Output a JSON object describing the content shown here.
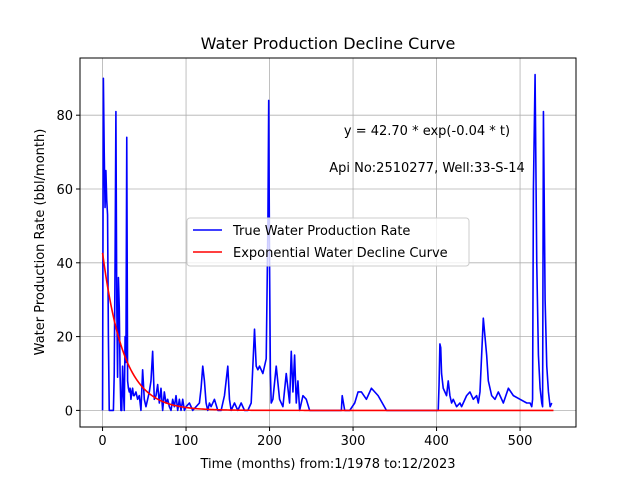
{
  "chart_data": {
    "type": "line",
    "title": "Water Production Decline Curve",
    "xlabel": "Time (months) from:1/1978 to:12/2023",
    "ylabel": "Water Production Rate (bbl/month)",
    "xlim": [
      -27,
      567
    ],
    "ylim": [
      -4.5,
      95.5
    ],
    "xticks": [
      0,
      100,
      200,
      300,
      400,
      500
    ],
    "yticks": [
      0,
      20,
      40,
      60,
      80
    ],
    "grid": true,
    "legend_position": "center-left",
    "annotations": [
      {
        "text": "y = 42.70 * exp(-0.04 * t)",
        "x": 350,
        "y": 76
      },
      {
        "text": "Api No:2510277, Well:33-S-14",
        "x": 349,
        "y": 66
      }
    ],
    "series": [
      {
        "name": "True Water Production Rate",
        "color": "#0000ff",
        "kind": "line",
        "x": [
          0,
          1,
          2,
          3,
          4,
          5,
          6,
          7,
          8,
          9,
          10,
          11,
          12,
          13,
          14,
          15,
          16,
          17,
          18,
          19,
          20,
          21,
          22,
          23,
          24,
          25,
          26,
          27,
          28,
          29,
          30,
          31,
          32,
          33,
          34,
          35,
          36,
          37,
          38,
          40,
          42,
          44,
          46,
          48,
          50,
          52,
          54,
          56,
          58,
          60,
          62,
          64,
          66,
          68,
          70,
          72,
          74,
          76,
          78,
          80,
          82,
          84,
          86,
          88,
          90,
          92,
          94,
          96,
          98,
          100,
          104,
          108,
          112,
          116,
          118,
          120,
          122,
          124,
          126,
          128,
          130,
          134,
          138,
          142,
          146,
          148,
          150,
          152,
          154,
          158,
          162,
          166,
          170,
          174,
          178,
          180,
          182,
          184,
          186,
          188,
          192,
          196,
          198,
          199,
          200,
          201,
          202,
          204,
          208,
          212,
          216,
          220,
          224,
          226,
          228,
          230,
          232,
          234,
          236,
          240,
          244,
          248,
          260,
          280,
          286,
          287,
          290,
          296,
          302,
          306,
          310,
          316,
          322,
          330,
          340,
          350,
          360,
          370,
          380,
          390,
          396,
          400,
          402,
          403,
          404,
          405,
          406,
          408,
          412,
          414,
          416,
          418,
          420,
          424,
          428,
          430,
          432,
          436,
          440,
          444,
          448,
          450,
          452,
          454,
          456,
          458,
          460,
          462,
          466,
          470,
          474,
          480,
          486,
          492,
          500,
          508,
          512,
          514,
          515,
          516,
          518,
          520,
          522,
          524,
          526,
          527,
          528,
          530,
          532,
          534,
          536,
          538
        ],
        "y": [
          0,
          90,
          70,
          55,
          65,
          57,
          53,
          20,
          0,
          0,
          0,
          0,
          0,
          0,
          10,
          40,
          81,
          30,
          9,
          36,
          28,
          10,
          0,
          0,
          12,
          5,
          0,
          20,
          13,
          74,
          8,
          6,
          5,
          6,
          3,
          5,
          6,
          4,
          4,
          5,
          3,
          4,
          0,
          11,
          3,
          1,
          3,
          5,
          8,
          16,
          3,
          4,
          7,
          2,
          6,
          0,
          5,
          2,
          3,
          1,
          0,
          3,
          1,
          4,
          0,
          3,
          0,
          3,
          0,
          1,
          2,
          0,
          1,
          2,
          6,
          12,
          8,
          2,
          0,
          2,
          1,
          3,
          0,
          0,
          4,
          8,
          12,
          3,
          0,
          2,
          0,
          2,
          0,
          0,
          2,
          12,
          22,
          12,
          11,
          12,
          10,
          14,
          50,
          84,
          40,
          10,
          2,
          3,
          12,
          3,
          1,
          10,
          2,
          16,
          5,
          15,
          2,
          8,
          0,
          4,
          3,
          0,
          0,
          0,
          0,
          4,
          0,
          0,
          2,
          5,
          5,
          3,
          6,
          4,
          0,
          0,
          0,
          0,
          0,
          0,
          0,
          0,
          0,
          7,
          18,
          17,
          10,
          6,
          4,
          8,
          4,
          2,
          3,
          1,
          2,
          1,
          2,
          4,
          5,
          3,
          4,
          2,
          5,
          15,
          25,
          20,
          15,
          8,
          4,
          3,
          5,
          2,
          6,
          4,
          3,
          2,
          2,
          1,
          3,
          60,
          91,
          40,
          15,
          6,
          2,
          1,
          81,
          30,
          12,
          5,
          1,
          2
        ],
        "annotation_count": 0
      },
      {
        "name": "Exponential Water Decline Curve",
        "color": "#ff0000",
        "kind": "model",
        "a": 42.7,
        "b": -0.04,
        "x_start": 0,
        "x_end": 540,
        "step": 2
      }
    ]
  }
}
